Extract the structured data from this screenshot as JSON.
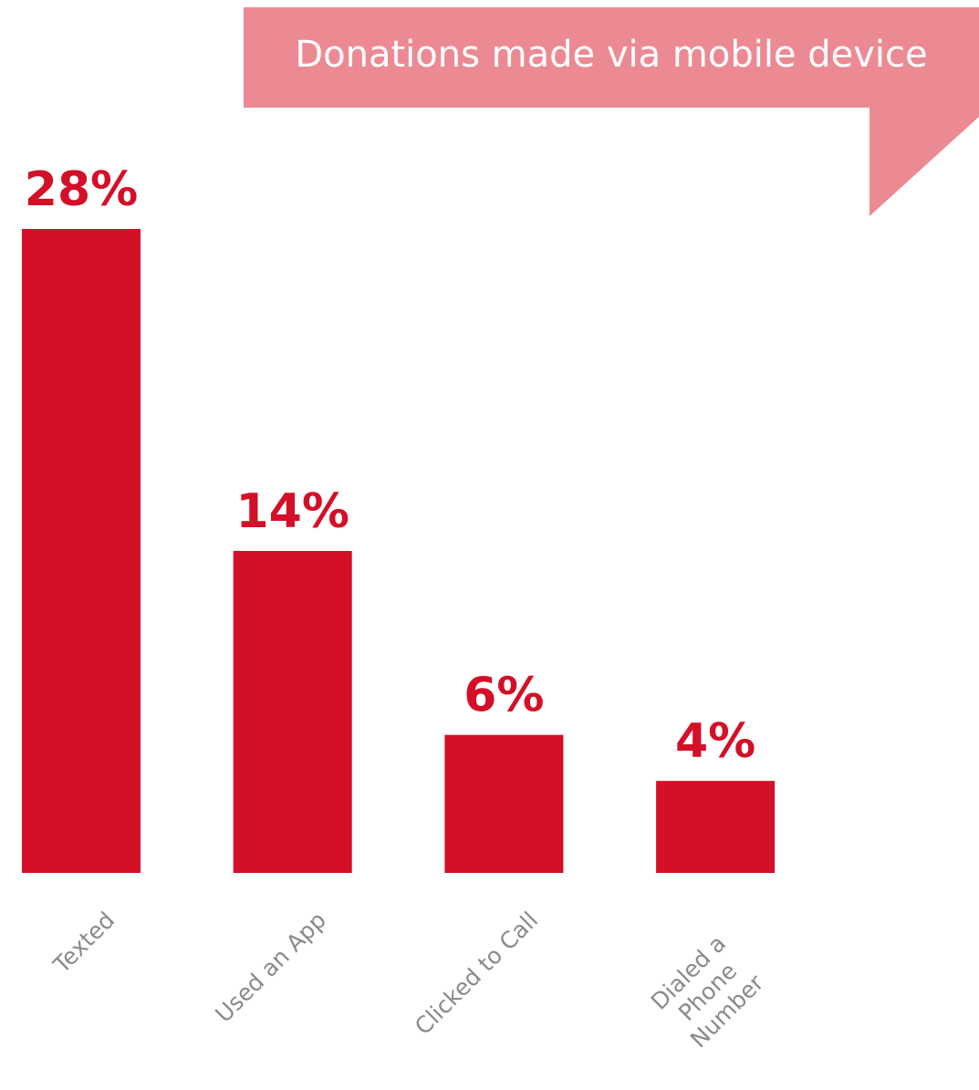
{
  "chart_data": {
    "type": "bar",
    "title": "Donations made via mobile device",
    "categories": [
      "Texted",
      "Used an App",
      "Clicked to Call",
      "Dialed a Phone Number"
    ],
    "values": [
      28,
      14,
      6,
      4
    ],
    "value_labels": [
      "28%",
      "14%",
      "6%",
      "4%"
    ],
    "color": "#d31027"
  }
}
